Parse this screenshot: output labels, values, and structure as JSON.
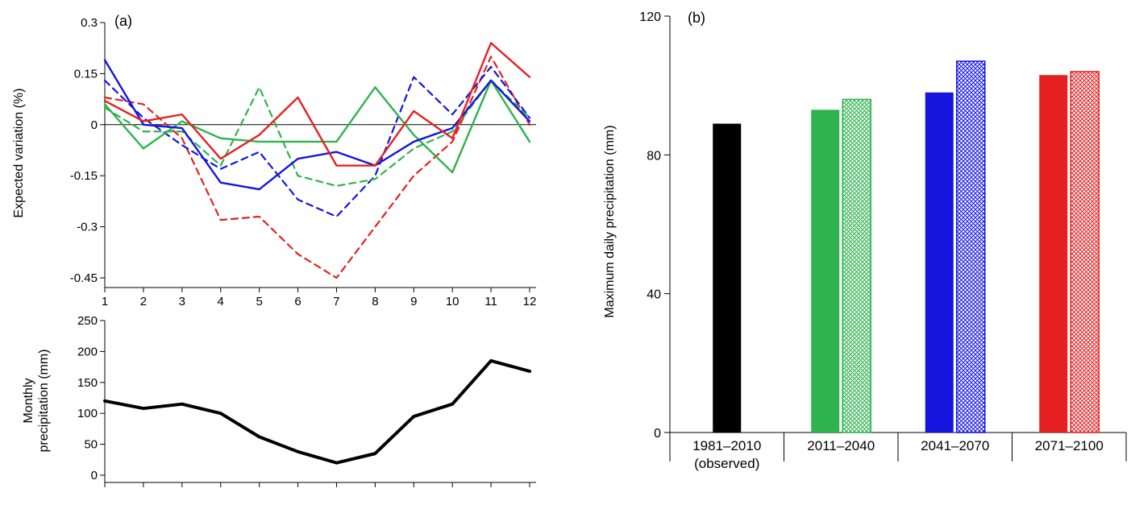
{
  "panels": {
    "a_label": "(a)",
    "b_label": "(b)"
  },
  "chart_data": [
    {
      "type": "line",
      "name": "expected-variation",
      "title": "",
      "xlabel": "",
      "ylabel": "Expected variation (%)",
      "x": [
        1,
        2,
        3,
        4,
        5,
        6,
        7,
        8,
        9,
        10,
        11,
        12
      ],
      "xtick_labels": [
        "1",
        "2",
        "3",
        "4",
        "5",
        "6",
        "7",
        "8",
        "9",
        "10",
        "11",
        "12"
      ],
      "ylim": [
        -0.45,
        0.3
      ],
      "yticks": [
        0.3,
        0.15,
        0,
        -0.15,
        -0.3,
        -0.45
      ],
      "ytick_labels": [
        "0.3",
        "0.15",
        "0",
        "-0.15",
        "-0.3",
        "-0.45"
      ],
      "zero_line": true,
      "grid": false,
      "legend": "none",
      "series": [
        {
          "name": "red-dashed",
          "color": "#e62020",
          "dash": "dashed",
          "width": 2.2,
          "values": [
            0.08,
            0.06,
            -0.04,
            -0.28,
            -0.27,
            -0.38,
            -0.45,
            -0.3,
            -0.15,
            -0.05,
            0.2,
            0.0
          ]
        },
        {
          "name": "blue-dashed",
          "color": "#1515dd",
          "dash": "dashed",
          "width": 2.2,
          "values": [
            0.13,
            0.02,
            -0.06,
            -0.13,
            -0.08,
            -0.22,
            -0.27,
            -0.15,
            0.14,
            0.03,
            0.17,
            0.02
          ]
        },
        {
          "name": "green-dashed",
          "color": "#2eb34e",
          "dash": "dashed",
          "width": 2.2,
          "values": [
            0.05,
            -0.02,
            -0.02,
            -0.12,
            0.11,
            -0.15,
            -0.18,
            -0.16,
            -0.07,
            -0.02,
            0.13,
            0.02
          ]
        },
        {
          "name": "green-solid",
          "color": "#2eb34e",
          "dash": "solid",
          "width": 2.4,
          "values": [
            0.06,
            -0.07,
            0.01,
            -0.04,
            -0.05,
            -0.05,
            -0.05,
            0.11,
            -0.03,
            -0.14,
            0.13,
            -0.05
          ]
        },
        {
          "name": "blue-solid",
          "color": "#1515dd",
          "dash": "solid",
          "width": 2.4,
          "values": [
            0.19,
            0.0,
            -0.01,
            -0.17,
            -0.19,
            -0.1,
            -0.08,
            -0.12,
            -0.05,
            -0.01,
            0.13,
            0.01
          ]
        },
        {
          "name": "red-solid",
          "color": "#e62020",
          "dash": "solid",
          "width": 2.4,
          "values": [
            0.07,
            0.01,
            0.03,
            -0.1,
            -0.03,
            0.08,
            -0.12,
            -0.12,
            0.04,
            -0.04,
            0.24,
            0.14
          ]
        }
      ]
    },
    {
      "type": "line",
      "name": "monthly-precipitation",
      "title": "",
      "xlabel": "",
      "ylabel": "Monthly\nprecipitation (mm)",
      "x": [
        1,
        2,
        3,
        4,
        5,
        6,
        7,
        8,
        9,
        10,
        11,
        12
      ],
      "ylim": [
        0,
        250
      ],
      "yticks": [
        250,
        200,
        150,
        100,
        50,
        0
      ],
      "ytick_labels": [
        "250",
        "200",
        "150",
        "100",
        "50",
        "0"
      ],
      "zero_line": false,
      "grid": false,
      "legend": "none",
      "series": [
        {
          "name": "observed-monthly-precipitation",
          "color": "#000000",
          "dash": "solid",
          "width": 4,
          "values": [
            120,
            108,
            115,
            100,
            62,
            38,
            20,
            35,
            95,
            115,
            185,
            168
          ]
        }
      ]
    },
    {
      "type": "bar",
      "name": "maximum-daily-precipitation",
      "title": "",
      "xlabel": "",
      "ylabel": "Maximum daily precipitation (mm)",
      "ylim": [
        0,
        120
      ],
      "yticks": [
        0,
        40,
        80,
        120
      ],
      "ytick_labels": [
        "0",
        "40",
        "80",
        "120"
      ],
      "grid": false,
      "legend": "none",
      "groups": [
        {
          "label": "1981–2010",
          "sublabel": "(observed)",
          "bars": [
            {
              "name": "observed",
              "color": "#000000",
              "hatch": false,
              "value": 89
            }
          ]
        },
        {
          "label": "2011–2040",
          "sublabel": "",
          "bars": [
            {
              "name": "2011-2040-solid",
              "color": "#2eb34e",
              "hatch": false,
              "value": 93
            },
            {
              "name": "2011-2040-hatched",
              "color": "#2eb34e",
              "hatch": true,
              "value": 96
            }
          ]
        },
        {
          "label": "2041–2070",
          "sublabel": "",
          "bars": [
            {
              "name": "2041-2070-solid",
              "color": "#1515dd",
              "hatch": false,
              "value": 98
            },
            {
              "name": "2041-2070-hatched",
              "color": "#1515dd",
              "hatch": true,
              "value": 107
            }
          ]
        },
        {
          "label": "2071–2100",
          "sublabel": "",
          "bars": [
            {
              "name": "2071-2100-solid",
              "color": "#e62020",
              "hatch": false,
              "value": 103
            },
            {
              "name": "2071-2100-hatched",
              "color": "#e62020",
              "hatch": true,
              "value": 104
            }
          ]
        }
      ]
    }
  ]
}
